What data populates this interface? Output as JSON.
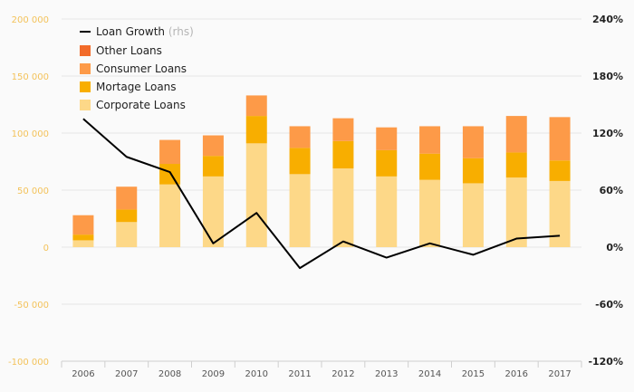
{
  "chart_data": {
    "type": "bar",
    "stacked": true,
    "categories": [
      "2006",
      "2007",
      "2008",
      "2009",
      "2010",
      "2011",
      "2012",
      "2013",
      "2014",
      "2015",
      "2016",
      "2017"
    ],
    "series": [
      {
        "name": "Corporate Loans",
        "color": "#fdd888",
        "values": [
          6000,
          22000,
          55000,
          62000,
          91000,
          64000,
          69000,
          62000,
          59000,
          56000,
          61000,
          58000
        ]
      },
      {
        "name": "Mortage Loans",
        "color": "#f8ae00",
        "values": [
          5000,
          11000,
          18000,
          18000,
          24000,
          23000,
          24000,
          23000,
          23000,
          22000,
          22000,
          18000
        ]
      },
      {
        "name": "Consumer Loans",
        "color": "#fd9a48",
        "values": [
          17000,
          20000,
          21000,
          18000,
          18000,
          19000,
          20000,
          20000,
          24000,
          28000,
          32000,
          38000
        ]
      },
      {
        "name": "Other Loans",
        "color": "#f26b2a",
        "values": [
          0,
          0,
          0,
          0,
          0,
          0,
          0,
          0,
          0,
          0,
          0,
          0
        ]
      }
    ],
    "line_series": {
      "name": "Loan Growth",
      "name_note": "(rhs)",
      "color": "#000000",
      "values": [
        135,
        95,
        79,
        4,
        36,
        -22,
        6,
        -11,
        4,
        -8,
        9,
        12
      ]
    },
    "y_left": {
      "ylim": [
        -100000,
        200000
      ],
      "ticks": [
        -100000,
        -50000,
        0,
        50000,
        100000,
        150000,
        200000
      ],
      "tick_labels": [
        "-100 000",
        "-50 000",
        "0",
        "50 000",
        "100 000",
        "150 000",
        "200 000"
      ]
    },
    "y_right": {
      "ylim": [
        -120,
        240
      ],
      "ticks": [
        -120,
        -60,
        0,
        60,
        120,
        180,
        240
      ],
      "tick_labels": [
        "-120%",
        "-60%",
        "0%",
        "60%",
        "120%",
        "180%",
        "240%"
      ]
    },
    "grid": true,
    "legend_position": "top-left"
  }
}
